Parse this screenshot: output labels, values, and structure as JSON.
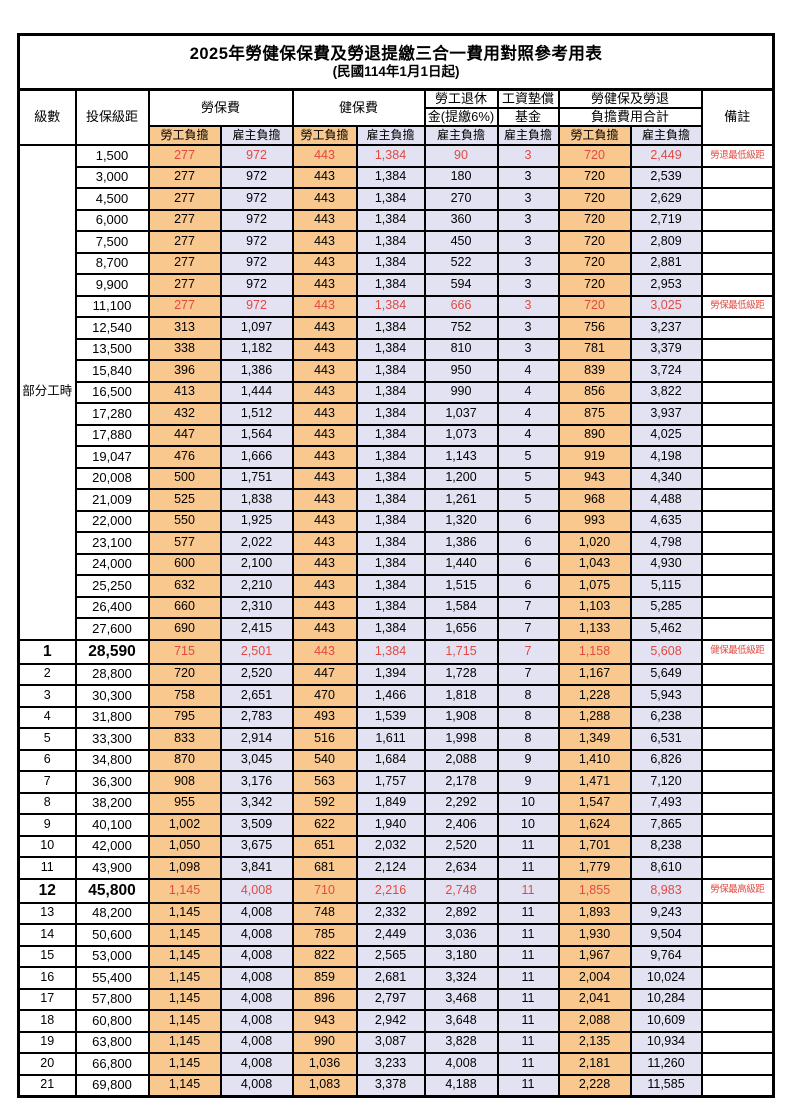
{
  "title": {
    "line1": "2025年勞健保保費及勞退提繳三合一費用對照參考用表",
    "line2": "(民國114年1月1日起)"
  },
  "header": {
    "level": "級數",
    "bracket": "投保級距",
    "labor_insurance": "勞保費",
    "health_insurance": "健保費",
    "pension_line1": "勞工退休",
    "pension_line2": "金(提繳6%)",
    "wage_fund_line1": "工資墊償",
    "wage_fund_line2": "基金",
    "total_line1": "勞健保及勞退",
    "total_line2": "負擔費用合計",
    "remark": "備註",
    "employee_label": "勞工負擔",
    "employer_label": "雇主負擔"
  },
  "part_time_label": "部分工時",
  "colors": {
    "employee_bg": "#F8C88F",
    "employer_bg": "#E2E2F2",
    "red_text": "#e04a42",
    "border": "#000000"
  },
  "rows": [
    {
      "section": "part",
      "level": "",
      "bracket": "1,500",
      "values": [
        "277",
        "972",
        "443",
        "1,384",
        "90",
        "3",
        "720",
        "2,449"
      ],
      "remark": "勞退最低級距",
      "red": true,
      "large": false
    },
    {
      "section": "part",
      "level": "",
      "bracket": "3,000",
      "values": [
        "277",
        "972",
        "443",
        "1,384",
        "180",
        "3",
        "720",
        "2,539"
      ],
      "remark": "",
      "red": false,
      "large": false
    },
    {
      "section": "part",
      "level": "",
      "bracket": "4,500",
      "values": [
        "277",
        "972",
        "443",
        "1,384",
        "270",
        "3",
        "720",
        "2,629"
      ],
      "remark": "",
      "red": false,
      "large": false
    },
    {
      "section": "part",
      "level": "",
      "bracket": "6,000",
      "values": [
        "277",
        "972",
        "443",
        "1,384",
        "360",
        "3",
        "720",
        "2,719"
      ],
      "remark": "",
      "red": false,
      "large": false
    },
    {
      "section": "part",
      "level": "",
      "bracket": "7,500",
      "values": [
        "277",
        "972",
        "443",
        "1,384",
        "450",
        "3",
        "720",
        "2,809"
      ],
      "remark": "",
      "red": false,
      "large": false
    },
    {
      "section": "part",
      "level": "",
      "bracket": "8,700",
      "values": [
        "277",
        "972",
        "443",
        "1,384",
        "522",
        "3",
        "720",
        "2,881"
      ],
      "remark": "",
      "red": false,
      "large": false
    },
    {
      "section": "part",
      "level": "",
      "bracket": "9,900",
      "values": [
        "277",
        "972",
        "443",
        "1,384",
        "594",
        "3",
        "720",
        "2,953"
      ],
      "remark": "",
      "red": false,
      "large": false
    },
    {
      "section": "part",
      "level": "",
      "bracket": "11,100",
      "values": [
        "277",
        "972",
        "443",
        "1,384",
        "666",
        "3",
        "720",
        "3,025"
      ],
      "remark": "勞保最低級距",
      "red": true,
      "large": false
    },
    {
      "section": "part",
      "level": "",
      "bracket": "12,540",
      "values": [
        "313",
        "1,097",
        "443",
        "1,384",
        "752",
        "3",
        "756",
        "3,237"
      ],
      "remark": "",
      "red": false,
      "large": false
    },
    {
      "section": "part",
      "level": "",
      "bracket": "13,500",
      "values": [
        "338",
        "1,182",
        "443",
        "1,384",
        "810",
        "3",
        "781",
        "3,379"
      ],
      "remark": "",
      "red": false,
      "large": false
    },
    {
      "section": "part",
      "level": "",
      "bracket": "15,840",
      "values": [
        "396",
        "1,386",
        "443",
        "1,384",
        "950",
        "4",
        "839",
        "3,724"
      ],
      "remark": "",
      "red": false,
      "large": false
    },
    {
      "section": "part",
      "level": "",
      "bracket": "16,500",
      "values": [
        "413",
        "1,444",
        "443",
        "1,384",
        "990",
        "4",
        "856",
        "3,822"
      ],
      "remark": "",
      "red": false,
      "large": false
    },
    {
      "section": "part",
      "level": "",
      "bracket": "17,280",
      "values": [
        "432",
        "1,512",
        "443",
        "1,384",
        "1,037",
        "4",
        "875",
        "3,937"
      ],
      "remark": "",
      "red": false,
      "large": false
    },
    {
      "section": "part",
      "level": "",
      "bracket": "17,880",
      "values": [
        "447",
        "1,564",
        "443",
        "1,384",
        "1,073",
        "4",
        "890",
        "4,025"
      ],
      "remark": "",
      "red": false,
      "large": false
    },
    {
      "section": "part",
      "level": "",
      "bracket": "19,047",
      "values": [
        "476",
        "1,666",
        "443",
        "1,384",
        "1,143",
        "5",
        "919",
        "4,198"
      ],
      "remark": "",
      "red": false,
      "large": false
    },
    {
      "section": "part",
      "level": "",
      "bracket": "20,008",
      "values": [
        "500",
        "1,751",
        "443",
        "1,384",
        "1,200",
        "5",
        "943",
        "4,340"
      ],
      "remark": "",
      "red": false,
      "large": false
    },
    {
      "section": "part",
      "level": "",
      "bracket": "21,009",
      "values": [
        "525",
        "1,838",
        "443",
        "1,384",
        "1,261",
        "5",
        "968",
        "4,488"
      ],
      "remark": "",
      "red": false,
      "large": false
    },
    {
      "section": "part",
      "level": "",
      "bracket": "22,000",
      "values": [
        "550",
        "1,925",
        "443",
        "1,384",
        "1,320",
        "6",
        "993",
        "4,635"
      ],
      "remark": "",
      "red": false,
      "large": false
    },
    {
      "section": "part",
      "level": "",
      "bracket": "23,100",
      "values": [
        "577",
        "2,022",
        "443",
        "1,384",
        "1,386",
        "6",
        "1,020",
        "4,798"
      ],
      "remark": "",
      "red": false,
      "large": false
    },
    {
      "section": "part",
      "level": "",
      "bracket": "24,000",
      "values": [
        "600",
        "2,100",
        "443",
        "1,384",
        "1,440",
        "6",
        "1,043",
        "4,930"
      ],
      "remark": "",
      "red": false,
      "large": false
    },
    {
      "section": "part",
      "level": "",
      "bracket": "25,250",
      "values": [
        "632",
        "2,210",
        "443",
        "1,384",
        "1,515",
        "6",
        "1,075",
        "5,115"
      ],
      "remark": "",
      "red": false,
      "large": false
    },
    {
      "section": "part",
      "level": "",
      "bracket": "26,400",
      "values": [
        "660",
        "2,310",
        "443",
        "1,384",
        "1,584",
        "7",
        "1,103",
        "5,285"
      ],
      "remark": "",
      "red": false,
      "large": false
    },
    {
      "section": "part",
      "level": "",
      "bracket": "27,600",
      "values": [
        "690",
        "2,415",
        "443",
        "1,384",
        "1,656",
        "7",
        "1,133",
        "5,462"
      ],
      "remark": "",
      "red": false,
      "large": false
    },
    {
      "section": "level",
      "level": "1",
      "bracket": "28,590",
      "values": [
        "715",
        "2,501",
        "443",
        "1,384",
        "1,715",
        "7",
        "1,158",
        "5,608"
      ],
      "remark": "健保最低級距",
      "red": true,
      "large": true
    },
    {
      "section": "level",
      "level": "2",
      "bracket": "28,800",
      "values": [
        "720",
        "2,520",
        "447",
        "1,394",
        "1,728",
        "7",
        "1,167",
        "5,649"
      ],
      "remark": "",
      "red": false,
      "large": false
    },
    {
      "section": "level",
      "level": "3",
      "bracket": "30,300",
      "values": [
        "758",
        "2,651",
        "470",
        "1,466",
        "1,818",
        "8",
        "1,228",
        "5,943"
      ],
      "remark": "",
      "red": false,
      "large": false
    },
    {
      "section": "level",
      "level": "4",
      "bracket": "31,800",
      "values": [
        "795",
        "2,783",
        "493",
        "1,539",
        "1,908",
        "8",
        "1,288",
        "6,238"
      ],
      "remark": "",
      "red": false,
      "large": false
    },
    {
      "section": "level",
      "level": "5",
      "bracket": "33,300",
      "values": [
        "833",
        "2,914",
        "516",
        "1,611",
        "1,998",
        "8",
        "1,349",
        "6,531"
      ],
      "remark": "",
      "red": false,
      "large": false
    },
    {
      "section": "level",
      "level": "6",
      "bracket": "34,800",
      "values": [
        "870",
        "3,045",
        "540",
        "1,684",
        "2,088",
        "9",
        "1,410",
        "6,826"
      ],
      "remark": "",
      "red": false,
      "large": false
    },
    {
      "section": "level",
      "level": "7",
      "bracket": "36,300",
      "values": [
        "908",
        "3,176",
        "563",
        "1,757",
        "2,178",
        "9",
        "1,471",
        "7,120"
      ],
      "remark": "",
      "red": false,
      "large": false
    },
    {
      "section": "level",
      "level": "8",
      "bracket": "38,200",
      "values": [
        "955",
        "3,342",
        "592",
        "1,849",
        "2,292",
        "10",
        "1,547",
        "7,493"
      ],
      "remark": "",
      "red": false,
      "large": false
    },
    {
      "section": "level",
      "level": "9",
      "bracket": "40,100",
      "values": [
        "1,002",
        "3,509",
        "622",
        "1,940",
        "2,406",
        "10",
        "1,624",
        "7,865"
      ],
      "remark": "",
      "red": false,
      "large": false
    },
    {
      "section": "level",
      "level": "10",
      "bracket": "42,000",
      "values": [
        "1,050",
        "3,675",
        "651",
        "2,032",
        "2,520",
        "11",
        "1,701",
        "8,238"
      ],
      "remark": "",
      "red": false,
      "large": false
    },
    {
      "section": "level",
      "level": "11",
      "bracket": "43,900",
      "values": [
        "1,098",
        "3,841",
        "681",
        "2,124",
        "2,634",
        "11",
        "1,779",
        "8,610"
      ],
      "remark": "",
      "red": false,
      "large": false
    },
    {
      "section": "level",
      "level": "12",
      "bracket": "45,800",
      "values": [
        "1,145",
        "4,008",
        "710",
        "2,216",
        "2,748",
        "11",
        "1,855",
        "8,983"
      ],
      "remark": "勞保最高級距",
      "red": true,
      "large": true
    },
    {
      "section": "level",
      "level": "13",
      "bracket": "48,200",
      "values": [
        "1,145",
        "4,008",
        "748",
        "2,332",
        "2,892",
        "11",
        "1,893",
        "9,243"
      ],
      "remark": "",
      "red": false,
      "large": false
    },
    {
      "section": "level",
      "level": "14",
      "bracket": "50,600",
      "values": [
        "1,145",
        "4,008",
        "785",
        "2,449",
        "3,036",
        "11",
        "1,930",
        "9,504"
      ],
      "remark": "",
      "red": false,
      "large": false
    },
    {
      "section": "level",
      "level": "15",
      "bracket": "53,000",
      "values": [
        "1,145",
        "4,008",
        "822",
        "2,565",
        "3,180",
        "11",
        "1,967",
        "9,764"
      ],
      "remark": "",
      "red": false,
      "large": false
    },
    {
      "section": "level",
      "level": "16",
      "bracket": "55,400",
      "values": [
        "1,145",
        "4,008",
        "859",
        "2,681",
        "3,324",
        "11",
        "2,004",
        "10,024"
      ],
      "remark": "",
      "red": false,
      "large": false
    },
    {
      "section": "level",
      "level": "17",
      "bracket": "57,800",
      "values": [
        "1,145",
        "4,008",
        "896",
        "2,797",
        "3,468",
        "11",
        "2,041",
        "10,284"
      ],
      "remark": "",
      "red": false,
      "large": false
    },
    {
      "section": "level",
      "level": "18",
      "bracket": "60,800",
      "values": [
        "1,145",
        "4,008",
        "943",
        "2,942",
        "3,648",
        "11",
        "2,088",
        "10,609"
      ],
      "remark": "",
      "red": false,
      "large": false
    },
    {
      "section": "level",
      "level": "19",
      "bracket": "63,800",
      "values": [
        "1,145",
        "4,008",
        "990",
        "3,087",
        "3,828",
        "11",
        "2,135",
        "10,934"
      ],
      "remark": "",
      "red": false,
      "large": false
    },
    {
      "section": "level",
      "level": "20",
      "bracket": "66,800",
      "values": [
        "1,145",
        "4,008",
        "1,036",
        "3,233",
        "4,008",
        "11",
        "2,181",
        "11,260"
      ],
      "remark": "",
      "red": false,
      "large": false
    },
    {
      "section": "level",
      "level": "21",
      "bracket": "69,800",
      "values": [
        "1,145",
        "4,008",
        "1,083",
        "3,378",
        "4,188",
        "11",
        "2,228",
        "11,585"
      ],
      "remark": "",
      "red": false,
      "large": false
    }
  ]
}
